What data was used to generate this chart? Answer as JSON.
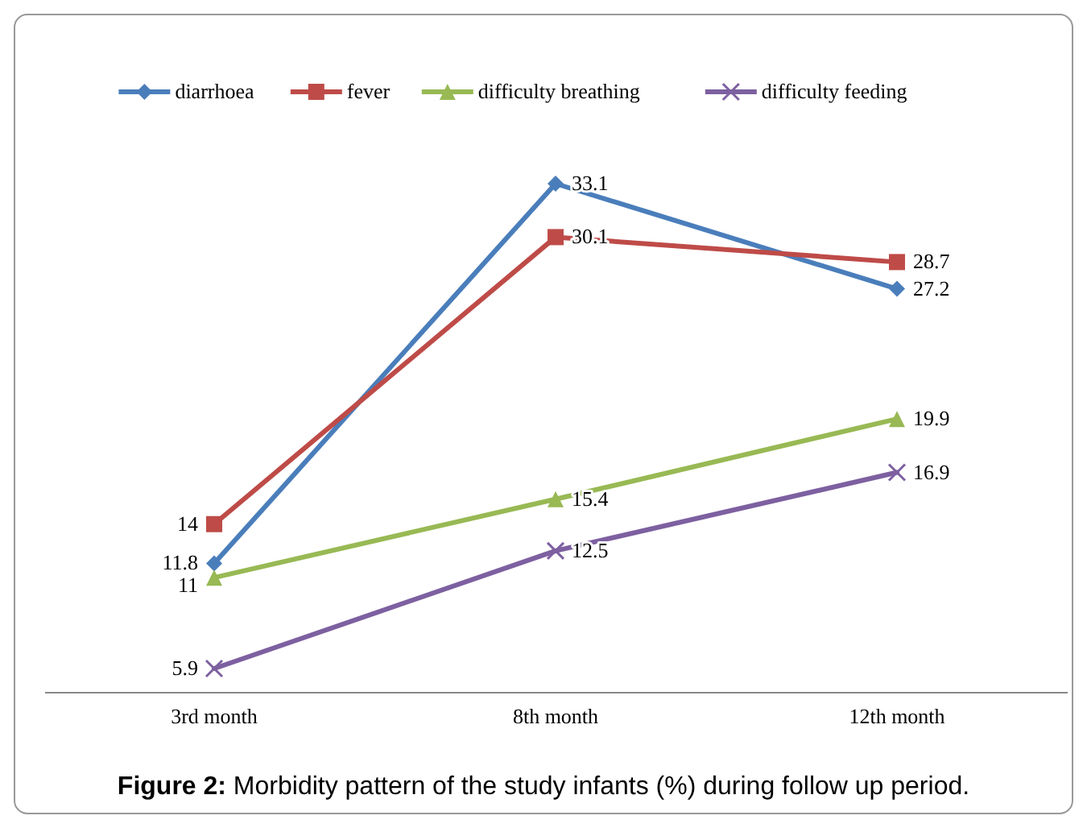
{
  "chart_data": {
    "type": "line",
    "title": "Figure 2: Morbidity pattern of the study infants (%) during follow up period.",
    "categories": [
      "3rd month",
      "8th month",
      "12th month"
    ],
    "series": [
      {
        "name": "diarrhoea",
        "color": "#4a7ebb",
        "marker": "diamond",
        "values": [
          11.8,
          33.1,
          27.2
        ]
      },
      {
        "name": "fever",
        "color": "#be4b48",
        "marker": "square",
        "values": [
          14,
          30.1,
          28.7
        ]
      },
      {
        "name": "difficulty breathing",
        "color": "#98b954",
        "marker": "triangle",
        "values": [
          11,
          15.4,
          19.9
        ]
      },
      {
        "name": "difficulty feeding",
        "color": "#7d60a0",
        "marker": "cross",
        "values": [
          5.9,
          12.5,
          16.9
        ]
      }
    ],
    "data_labels": true,
    "legend": "top",
    "grid": false
  }
}
